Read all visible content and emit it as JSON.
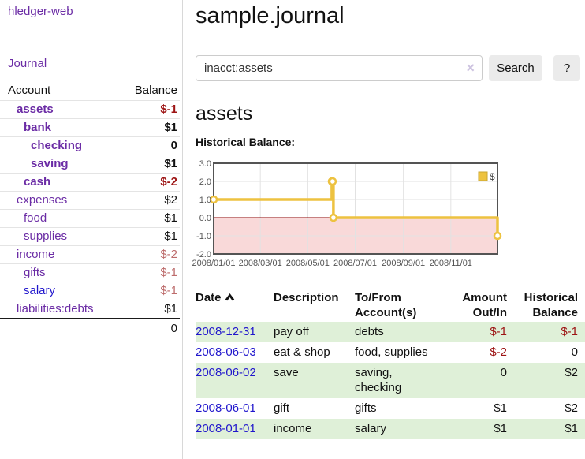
{
  "app": {
    "brand": "hledger-web"
  },
  "nav": {
    "journal": "Journal"
  },
  "sidebar": {
    "header": {
      "account": "Account",
      "balance": "Balance"
    },
    "accounts": [
      {
        "name": "assets",
        "indent": 1,
        "bold": true,
        "link_color": "purple",
        "balance": "$-1",
        "balance_color": "negative"
      },
      {
        "name": "bank",
        "indent": 2,
        "bold": true,
        "link_color": "purple",
        "balance": "$1",
        "balance_color": "normal"
      },
      {
        "name": "checking",
        "indent": 3,
        "bold": true,
        "link_color": "purple",
        "balance": "0",
        "balance_color": "normal"
      },
      {
        "name": "saving",
        "indent": 3,
        "bold": true,
        "link_color": "purple",
        "balance": "$1",
        "balance_color": "normal"
      },
      {
        "name": "cash",
        "indent": 2,
        "bold": true,
        "link_color": "purple",
        "balance": "$-2",
        "balance_color": "negative"
      },
      {
        "name": "expenses",
        "indent": 1,
        "bold": false,
        "link_color": "purple",
        "balance": "$2",
        "balance_color": "normal"
      },
      {
        "name": "food",
        "indent": 2,
        "bold": false,
        "link_color": "purple",
        "balance": "$1",
        "balance_color": "normal"
      },
      {
        "name": "supplies",
        "indent": 2,
        "bold": false,
        "link_color": "purple",
        "balance": "$1",
        "balance_color": "normal"
      },
      {
        "name": "income",
        "indent": 1,
        "bold": false,
        "link_color": "purple",
        "balance": "$-2",
        "balance_color": "negative-soft"
      },
      {
        "name": "gifts",
        "indent": 2,
        "bold": false,
        "link_color": "purple",
        "balance": "$-1",
        "balance_color": "negative-soft"
      },
      {
        "name": "salary",
        "indent": 2,
        "bold": false,
        "link_color": "blue",
        "balance": "$-1",
        "balance_color": "negative-soft"
      },
      {
        "name": "liabilities:debts",
        "indent": 1,
        "bold": false,
        "link_color": "purple",
        "balance": "$1",
        "balance_color": "normal"
      }
    ],
    "total": "0"
  },
  "main": {
    "title": "sample.journal",
    "search": {
      "value": "inacct:assets",
      "clear_icon": "×",
      "button_label": "Search",
      "help_label": "?"
    },
    "account_heading": "assets",
    "chart_label": "Historical Balance:"
  },
  "register": {
    "headers": [
      "Date",
      "Description",
      "To/From Account(s)",
      "Amount Out/In",
      "Historical Balance"
    ],
    "sort": {
      "column": "Date",
      "direction": "ascending"
    },
    "rows": [
      {
        "date": "2008-12-31",
        "description": "pay off",
        "accounts": "debts",
        "amount": "$-1",
        "amount_negative": true,
        "balance": "$-1",
        "balance_negative": true,
        "shaded": true
      },
      {
        "date": "2008-06-03",
        "description": "eat & shop",
        "accounts": "food, supplies",
        "amount": "$-2",
        "amount_negative": true,
        "balance": "0",
        "balance_negative": false,
        "shaded": false
      },
      {
        "date": "2008-06-02",
        "description": "save",
        "accounts": "saving, checking",
        "amount": "0",
        "amount_negative": false,
        "balance": "$2",
        "balance_negative": false,
        "shaded": true
      },
      {
        "date": "2008-06-01",
        "description": "gift",
        "accounts": "gifts",
        "amount": "$1",
        "amount_negative": false,
        "balance": "$2",
        "balance_negative": false,
        "shaded": false
      },
      {
        "date": "2008-01-01",
        "description": "income",
        "accounts": "salary",
        "amount": "$1",
        "amount_negative": false,
        "balance": "$1",
        "balance_negative": false,
        "shaded": true
      }
    ]
  },
  "chart_data": {
    "type": "line",
    "step": true,
    "title": "Historical Balance",
    "series": [
      {
        "name": "$",
        "color": "#EDC240",
        "points": [
          [
            "2008-01-01",
            1
          ],
          [
            "2008-06-01",
            2
          ],
          [
            "2008-06-02",
            2
          ],
          [
            "2008-06-03",
            0
          ],
          [
            "2008-12-31",
            -1
          ]
        ]
      }
    ],
    "x_range": [
      "2008-01-01",
      "2008-12-31"
    ],
    "x_ticks": [
      "2008/01/01",
      "2008/03/01",
      "2008/05/01",
      "2008/07/01",
      "2008/09/01",
      "2008/11/01"
    ],
    "y_ticks": [
      3,
      2,
      1,
      0,
      -1,
      -2
    ],
    "ylim": [
      -2,
      3
    ],
    "grid": true,
    "legend": {
      "label": "$",
      "position": "top-right"
    },
    "colors": {
      "negative_bg": "#f9d9d9",
      "zero_line": "#8e0000",
      "frame": "#545454",
      "grid": "#e2e2e2",
      "axis_text": "#545454",
      "marker_fill": "#ffffff",
      "legend_border": "#c9a52f"
    }
  },
  "colors": {
    "link_purple": "#6b2ca5",
    "link_blue": "#2016cc",
    "negative": "#9d1414",
    "negative_soft": "#bd6c6c",
    "row_stripe": "#dff0d8",
    "button_bg": "#ebebeb"
  }
}
